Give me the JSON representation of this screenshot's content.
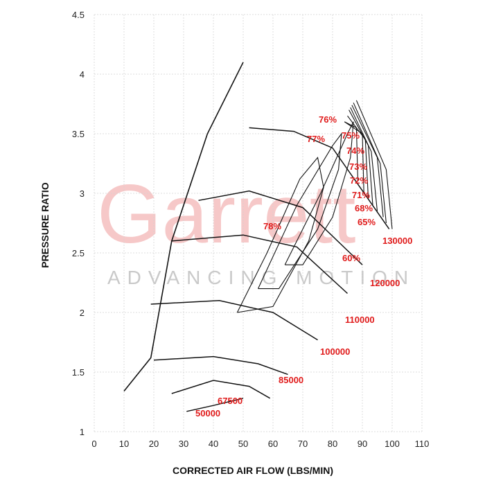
{
  "chart_data": {
    "type": "line",
    "xlabel": "CORRECTED AIR FLOW (LBS/MIN)",
    "ylabel": "PRESSURE RATIO",
    "xlim": [
      0,
      110
    ],
    "ylim": [
      1,
      4.5
    ],
    "x_ticks": [
      "0",
      "10",
      "20",
      "30",
      "40",
      "50",
      "60",
      "70",
      "80",
      "90",
      "100",
      "110"
    ],
    "y_ticks": [
      "1",
      "1.5",
      "2",
      "2.5",
      "3",
      "3.5",
      "4",
      "4.5"
    ],
    "grid": true,
    "watermark": {
      "brand": "Garrett",
      "tagline": "ADVANCING MOTION"
    },
    "speed_lines": [
      {
        "label": "50000",
        "points": [
          [
            31,
            1.17
          ],
          [
            40,
            1.22
          ],
          [
            50,
            1.28
          ]
        ]
      },
      {
        "label": "67500",
        "points": [
          [
            26,
            1.32
          ],
          [
            40,
            1.43
          ],
          [
            52,
            1.38
          ],
          [
            59,
            1.28
          ]
        ]
      },
      {
        "label": "85000",
        "points": [
          [
            20,
            1.6
          ],
          [
            40,
            1.63
          ],
          [
            55,
            1.57
          ],
          [
            65,
            1.48
          ]
        ]
      },
      {
        "label": "100000",
        "points": [
          [
            19,
            2.07
          ],
          [
            42,
            2.1
          ],
          [
            60,
            2.0
          ],
          [
            75,
            1.77
          ]
        ]
      },
      {
        "label": "110000",
        "points": [
          [
            26,
            2.6
          ],
          [
            50,
            2.65
          ],
          [
            68,
            2.55
          ],
          [
            85,
            2.16
          ]
        ]
      },
      {
        "label": "120000",
        "points": [
          [
            35,
            2.94
          ],
          [
            52,
            3.02
          ],
          [
            70,
            2.88
          ],
          [
            90,
            2.4
          ]
        ]
      },
      {
        "label": "130000",
        "points": [
          [
            52,
            3.55
          ],
          [
            67,
            3.52
          ],
          [
            80,
            3.38
          ],
          [
            99,
            2.7
          ]
        ]
      }
    ],
    "surge_line": [
      [
        10,
        1.34
      ],
      [
        19,
        1.62
      ],
      [
        26,
        2.6
      ],
      [
        38,
        3.5
      ],
      [
        50,
        4.1
      ]
    ],
    "efficiency_islands": [
      {
        "label": "78%",
        "points": [
          [
            48,
            2.0
          ],
          [
            58,
            2.5
          ],
          [
            69,
            3.12
          ],
          [
            75,
            3.3
          ],
          [
            77,
            3.05
          ],
          [
            72,
            2.6
          ],
          [
            60,
            2.05
          ],
          [
            48,
            2.0
          ]
        ]
      },
      {
        "label": "77%",
        "points": [
          [
            55,
            2.2
          ],
          [
            68,
            2.9
          ],
          [
            80,
            3.4
          ],
          [
            83,
            3.5
          ],
          [
            82,
            3.2
          ],
          [
            75,
            2.7
          ],
          [
            62,
            2.2
          ],
          [
            55,
            2.2
          ]
        ]
      },
      {
        "label": "76%",
        "points": [
          [
            64,
            2.4
          ],
          [
            76,
            3.0
          ],
          [
            85,
            3.5
          ],
          [
            87,
            3.6
          ],
          [
            86,
            3.3
          ],
          [
            80,
            2.8
          ],
          [
            70,
            2.4
          ],
          [
            64,
            2.4
          ]
        ]
      },
      {
        "label": "75%",
        "points": [
          [
            84,
            3.6
          ],
          [
            88,
            3.55
          ],
          [
            88.5,
            3.1
          ]
        ]
      },
      {
        "label": "74%",
        "points": [
          [
            84,
            3.6
          ],
          [
            90,
            3.5
          ],
          [
            90.5,
            3.0
          ]
        ]
      },
      {
        "label": "73%",
        "points": [
          [
            85,
            3.65
          ],
          [
            91,
            3.45
          ],
          [
            92,
            2.95
          ]
        ]
      },
      {
        "label": "72%",
        "points": [
          [
            85.5,
            3.7
          ],
          [
            92,
            3.4
          ],
          [
            93.5,
            2.9
          ]
        ]
      },
      {
        "label": "71%",
        "points": [
          [
            86,
            3.72
          ],
          [
            93,
            3.35
          ],
          [
            95,
            2.85
          ]
        ]
      },
      {
        "label": "68%",
        "points": [
          [
            86.5,
            3.74
          ],
          [
            95,
            3.3
          ],
          [
            97,
            2.8
          ]
        ]
      },
      {
        "label": "65%",
        "points": [
          [
            87,
            3.76
          ],
          [
            96,
            3.25
          ],
          [
            98,
            2.75
          ]
        ]
      },
      {
        "label": "60%",
        "points": [
          [
            88,
            3.78
          ],
          [
            98,
            3.2
          ],
          [
            100,
            2.7
          ]
        ]
      }
    ]
  }
}
